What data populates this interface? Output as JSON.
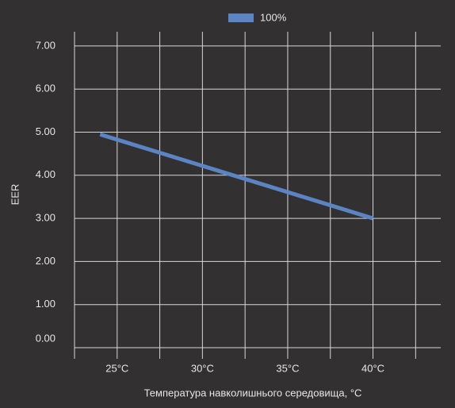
{
  "chart_data": {
    "type": "line",
    "x_label": "Температура навколишнього середовища, °C",
    "y_label": "EER",
    "series": [
      {
        "name": "100%",
        "color": "#5b84c4",
        "x": [
          24,
          40
        ],
        "values": [
          4.95,
          3.0
        ]
      }
    ],
    "xlim": [
      22.5,
      43.6
    ],
    "xticks": [
      {
        "value": 25,
        "label": "25°C"
      },
      {
        "value": 30,
        "label": "30°C"
      },
      {
        "value": 35,
        "label": "35°C"
      },
      {
        "value": 40,
        "label": "40°C"
      }
    ],
    "xminor": [
      27.5,
      32.5,
      37.5,
      42.5
    ],
    "ylim": [
      0,
      7.33
    ],
    "yticks": [
      {
        "value": 0,
        "label": "0.00"
      },
      {
        "value": 1,
        "label": "1.00"
      },
      {
        "value": 2,
        "label": "2.00"
      },
      {
        "value": 3,
        "label": "3.00"
      },
      {
        "value": 4,
        "label": "4.00"
      },
      {
        "value": 5,
        "label": "5.00"
      },
      {
        "value": 6,
        "label": "6.00"
      },
      {
        "value": 7,
        "label": "7.00"
      }
    ],
    "grid": true,
    "legend": "top"
  }
}
